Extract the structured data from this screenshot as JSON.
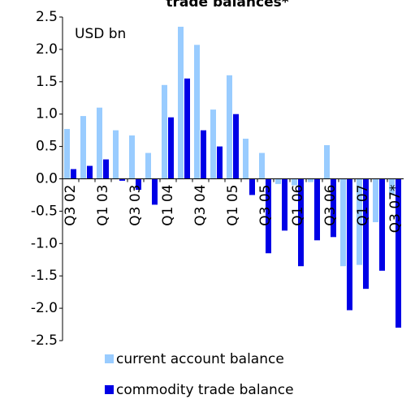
{
  "chart_data": {
    "type": "bar",
    "title": "trade balances*",
    "annotation": "USD bn",
    "categories": [
      "Q3 02",
      null,
      "Q1 03",
      null,
      "Q3 03",
      null,
      "Q1 04",
      null,
      "Q3 04",
      null,
      "Q1 05",
      null,
      "Q3 05",
      null,
      "Q1 06",
      null,
      "Q3 06",
      null,
      "Q1 07",
      null,
      "Q3 07*"
    ],
    "series": [
      {
        "name": "current account balance",
        "color": "#99ccff",
        "values": [
          0.77,
          0.97,
          1.1,
          0.75,
          0.67,
          0.4,
          1.45,
          2.35,
          2.07,
          1.07,
          1.6,
          0.62,
          0.4,
          -0.08,
          -0.1,
          -0.05,
          0.52,
          -1.35,
          -1.33,
          -0.67,
          -0.25
        ]
      },
      {
        "name": "commodity trade balance",
        "color": "#0000e6",
        "values": [
          0.15,
          0.2,
          0.3,
          -0.03,
          -0.17,
          -0.4,
          0.95,
          1.55,
          0.75,
          0.5,
          1.0,
          -0.25,
          -1.15,
          -0.8,
          -1.35,
          -0.95,
          -0.9,
          -2.03,
          -1.7,
          -1.42,
          -2.3
        ]
      }
    ],
    "ylim": [
      -2.5,
      2.5
    ],
    "yticks": [
      -2.5,
      {
        "value": -2,
        "label": "-2.0"
      },
      -1.5,
      {
        "value": -1,
        "label": "-1.0"
      },
      -0.5,
      {
        "value": 0,
        "label": "0.0"
      },
      0.5,
      {
        "value": 1,
        "label": "1.0"
      },
      1.5,
      {
        "value": 2,
        "label": "2.0"
      },
      2.5
    ],
    "legend": "bottom"
  }
}
